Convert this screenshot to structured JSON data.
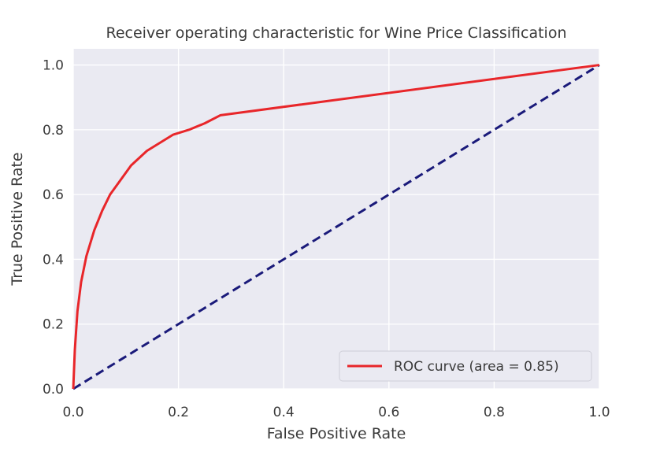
{
  "chart_data": {
    "type": "line",
    "title": "Receiver operating characteristic for Wine Price Classification",
    "xlabel": "False Positive Rate",
    "ylabel": "True Positive Rate",
    "xlim": [
      0.0,
      1.0
    ],
    "ylim": [
      0.0,
      1.05
    ],
    "xticks": [
      "0.0",
      "0.2",
      "0.4",
      "0.6",
      "0.8",
      "1.0"
    ],
    "yticks": [
      "0.0",
      "0.2",
      "0.4",
      "0.6",
      "0.8",
      "1.0"
    ],
    "grid": true,
    "legend_position": "lower-right",
    "background_color": "#eaeaf2",
    "grid_color": "#ffffff",
    "series": [
      {
        "name": "ROC curve (area = 0.85)",
        "color": "#e8262a",
        "style": "solid",
        "x": [
          0.0,
          0.003,
          0.008,
          0.015,
          0.025,
          0.04,
          0.055,
          0.07,
          0.09,
          0.11,
          0.14,
          0.17,
          0.19,
          0.22,
          0.25,
          0.28,
          1.0
        ],
        "y": [
          0.0,
          0.12,
          0.24,
          0.33,
          0.41,
          0.49,
          0.55,
          0.6,
          0.645,
          0.69,
          0.735,
          0.765,
          0.785,
          0.8,
          0.82,
          0.845,
          1.0
        ]
      },
      {
        "name": "",
        "color": "#1a1a7a",
        "style": "dashed",
        "x": [
          0.0,
          1.0
        ],
        "y": [
          0.0,
          1.0
        ]
      }
    ]
  }
}
